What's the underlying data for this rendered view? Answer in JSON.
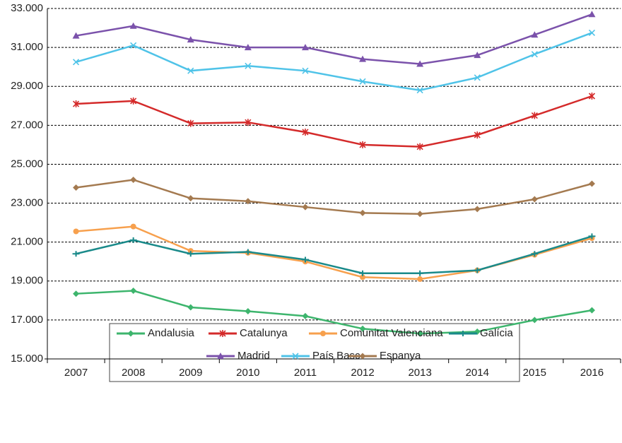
{
  "chart_data": {
    "type": "line",
    "categories": [
      "2007",
      "2008",
      "2009",
      "2010",
      "2011",
      "2012",
      "2013",
      "2014",
      "2015",
      "2016"
    ],
    "ylim": [
      15000,
      33000
    ],
    "yticks": [
      {
        "value": 15000,
        "label": "15.000"
      },
      {
        "value": 17000,
        "label": "17.000"
      },
      {
        "value": 19000,
        "label": "19.000"
      },
      {
        "value": 21000,
        "label": "21.000"
      },
      {
        "value": 23000,
        "label": "23.000"
      },
      {
        "value": 25000,
        "label": "25.000"
      },
      {
        "value": 27000,
        "label": "27.000"
      },
      {
        "value": 29000,
        "label": "29.000"
      },
      {
        "value": 31000,
        "label": "31.000"
      },
      {
        "value": 33000,
        "label": "33.000"
      }
    ],
    "grid": true,
    "legend": "bottom",
    "series": [
      {
        "name": "Andalusia",
        "color": "#3db56d",
        "marker": "diamond",
        "values": [
          18350,
          18500,
          17650,
          17450,
          17200,
          16550,
          16300,
          16400,
          17000,
          17500
        ]
      },
      {
        "name": "Catalunya",
        "color": "#d42a2a",
        "marker": "asterisk",
        "values": [
          28100,
          28250,
          27100,
          27150,
          26650,
          26000,
          25900,
          26500,
          27500,
          28500
        ]
      },
      {
        "name": "Comunitat Valenciana",
        "color": "#f7a04d",
        "marker": "circle",
        "values": [
          21550,
          21800,
          20550,
          20450,
          20000,
          19200,
          19100,
          19550,
          20350,
          21200
        ]
      },
      {
        "name": "Galícia",
        "color": "#1a8a8a",
        "marker": "dash",
        "values": [
          20400,
          21100,
          20400,
          20500,
          20100,
          19400,
          19400,
          19550,
          20400,
          21300
        ]
      },
      {
        "name": "Madrid",
        "color": "#7b52ab",
        "marker": "triangle",
        "values": [
          31600,
          32100,
          31400,
          31000,
          31000,
          30400,
          30150,
          30600,
          31650,
          32700
        ]
      },
      {
        "name": "País Basc",
        "color": "#4fc3e8",
        "marker": "x",
        "values": [
          30250,
          31100,
          29800,
          30050,
          29800,
          29250,
          28800,
          29450,
          30650,
          31750
        ]
      },
      {
        "name": "Espanya",
        "color": "#a47a50",
        "marker": "diamond",
        "values": [
          23800,
          24200,
          23250,
          23100,
          22800,
          22500,
          22450,
          22700,
          23200,
          24000
        ]
      }
    ]
  }
}
